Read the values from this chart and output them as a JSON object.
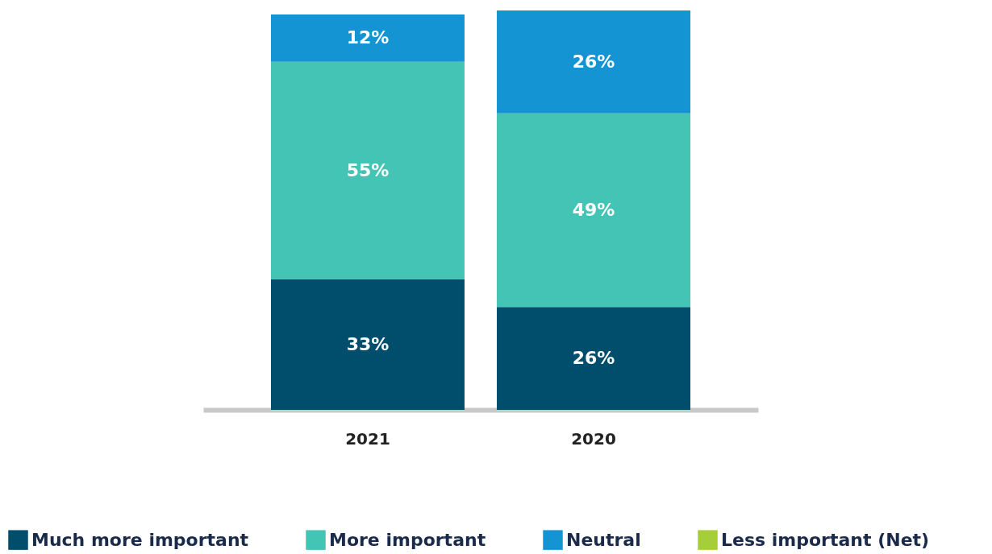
{
  "chart_data": {
    "type": "bar",
    "stacked": true,
    "categories": [
      "2021",
      "2020"
    ],
    "legend": "bottom",
    "series": [
      {
        "name": "Much more important",
        "color": "#004e6c",
        "values": [
          33,
          26
        ],
        "value_labels": [
          "33%",
          "26%"
        ]
      },
      {
        "name": "More important",
        "color": "#43c4b4",
        "values": [
          55,
          49
        ],
        "value_labels": [
          "55%",
          "49%"
        ]
      },
      {
        "name": "Neutral",
        "color": "#1594d4",
        "values": [
          12,
          26
        ],
        "value_labels": [
          "12%",
          "26%"
        ]
      },
      {
        "name": "Less important (Net)",
        "color": "#a6ce39",
        "values": [
          null,
          null
        ]
      }
    ]
  }
}
